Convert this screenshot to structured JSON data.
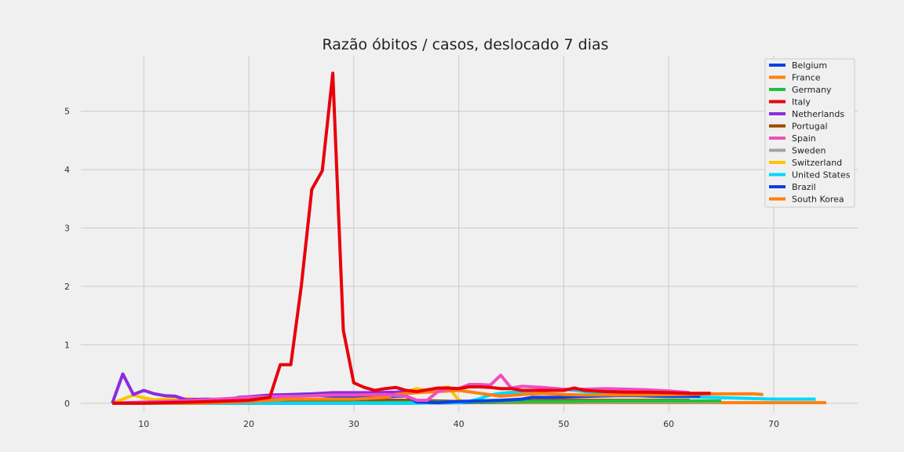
{
  "chart_data": {
    "type": "line",
    "title": "Razão óbitos / casos, deslocado 7 dias",
    "xlabel": "",
    "ylabel": "",
    "xlim": [
      4,
      78
    ],
    "ylim": [
      -0.15,
      5.95
    ],
    "xticks": [
      10,
      20,
      30,
      40,
      50,
      60,
      70
    ],
    "yticks": [
      0,
      1,
      2,
      3,
      4,
      5
    ],
    "grid": true,
    "legend_position": "top-right",
    "series": [
      {
        "name": "Belgium",
        "color": "#0b3fe3",
        "x": [
          7,
          10,
          15,
          18,
          20,
          22,
          24,
          26,
          28,
          30,
          32,
          34,
          35,
          36,
          38,
          40,
          42,
          44,
          46,
          47,
          49,
          51,
          53,
          55,
          57,
          59,
          61,
          63
        ],
        "y": [
          0.0,
          0.0,
          0.02,
          0.04,
          0.07,
          0.1,
          0.13,
          0.14,
          0.12,
          0.1,
          0.1,
          0.12,
          0.12,
          0.02,
          0.01,
          0.03,
          0.04,
          0.05,
          0.07,
          0.1,
          0.1,
          0.11,
          0.12,
          0.13,
          0.13,
          0.12,
          0.12,
          0.12
        ]
      },
      {
        "name": "France",
        "color": "#ff7f0e",
        "x": [
          7,
          15,
          20,
          24,
          26,
          30,
          33,
          34,
          36,
          38,
          40,
          42,
          44,
          46,
          48,
          50,
          52,
          55,
          58,
          61,
          64,
          66,
          68,
          69
        ],
        "y": [
          0.0,
          0.0,
          0.03,
          0.07,
          0.07,
          0.07,
          0.1,
          0.15,
          0.18,
          0.2,
          0.22,
          0.17,
          0.12,
          0.15,
          0.17,
          0.15,
          0.14,
          0.14,
          0.14,
          0.15,
          0.16,
          0.16,
          0.16,
          0.15
        ]
      },
      {
        "name": "Germany",
        "color": "#1fc13b",
        "x": [
          7,
          20,
          30,
          40,
          45,
          50,
          55,
          60,
          65
        ],
        "y": [
          0.0,
          0.0,
          0.01,
          0.02,
          0.03,
          0.03,
          0.04,
          0.04,
          0.04
        ]
      },
      {
        "name": "Italy",
        "color": "#e8000b",
        "x": [
          7,
          10,
          15,
          20,
          22,
          23,
          24,
          25,
          26,
          27,
          28,
          29,
          30,
          31,
          32,
          33,
          34,
          35,
          36,
          37,
          38,
          39,
          40,
          41,
          42,
          43,
          44,
          45,
          46,
          48,
          50,
          51,
          52,
          54,
          56,
          58,
          60,
          62,
          64
        ],
        "y": [
          0.0,
          0.0,
          0.02,
          0.05,
          0.1,
          0.66,
          0.66,
          2.0,
          3.66,
          3.98,
          5.65,
          1.25,
          0.35,
          0.27,
          0.22,
          0.25,
          0.27,
          0.22,
          0.2,
          0.23,
          0.26,
          0.26,
          0.25,
          0.28,
          0.28,
          0.27,
          0.25,
          0.25,
          0.22,
          0.22,
          0.22,
          0.26,
          0.22,
          0.2,
          0.19,
          0.19,
          0.18,
          0.17,
          0.17
        ]
      },
      {
        "name": "Netherlands",
        "color": "#8b2be2",
        "x": [
          7,
          8,
          9,
          10,
          11,
          12,
          13,
          14,
          16,
          18,
          19,
          20,
          22,
          24,
          26,
          28,
          30,
          32,
          34,
          35
        ],
        "y": [
          0.0,
          0.5,
          0.15,
          0.22,
          0.16,
          0.13,
          0.12,
          0.06,
          0.07,
          0.06,
          0.1,
          0.11,
          0.14,
          0.15,
          0.16,
          0.18,
          0.18,
          0.18,
          0.19,
          0.2
        ]
      },
      {
        "name": "Portugal",
        "color": "#9f4800",
        "x": [
          7,
          15,
          20,
          24,
          26,
          28,
          30,
          35,
          40,
          45,
          50,
          55,
          60,
          62
        ],
        "y": [
          0.0,
          0.01,
          0.03,
          0.06,
          0.06,
          0.06,
          0.06,
          0.05,
          0.03,
          0.04,
          0.05,
          0.05,
          0.05,
          0.05
        ]
      },
      {
        "name": "Spain",
        "color": "#f14cc1",
        "x": [
          7,
          15,
          20,
          24,
          28,
          30,
          33,
          35,
          36,
          37,
          38,
          39,
          40,
          41,
          42,
          43,
          44,
          45,
          46,
          48,
          50,
          52,
          54,
          56,
          58,
          60,
          62
        ],
        "y": [
          0.0,
          0.05,
          0.1,
          0.12,
          0.14,
          0.14,
          0.15,
          0.12,
          0.05,
          0.05,
          0.2,
          0.25,
          0.25,
          0.32,
          0.32,
          0.31,
          0.48,
          0.26,
          0.29,
          0.27,
          0.24,
          0.24,
          0.25,
          0.24,
          0.23,
          0.21,
          0.18
        ]
      },
      {
        "name": "Sweden",
        "color": "#a3a3a3",
        "x": [
          7,
          20,
          30,
          40,
          50,
          60,
          65
        ],
        "y": [
          0.0,
          0.01,
          0.01,
          0.02,
          0.02,
          0.02,
          0.02
        ]
      },
      {
        "name": "Switzerland",
        "color": "#ffc400",
        "x": [
          7,
          9,
          10,
          11,
          12,
          13,
          15,
          17,
          20,
          25,
          30,
          32,
          34,
          36,
          37,
          38,
          39,
          40,
          41,
          42
        ],
        "y": [
          0.0,
          0.14,
          0.09,
          0.06,
          0.07,
          0.08,
          0.07,
          0.02,
          0.02,
          0.03,
          0.03,
          0.06,
          0.15,
          0.25,
          0.22,
          0.25,
          0.28,
          0.05,
          0.02,
          0.02
        ]
      },
      {
        "name": "United States",
        "color": "#00d7ff",
        "x": [
          7,
          20,
          30,
          33,
          36,
          38,
          40,
          41,
          42,
          43,
          44,
          46,
          48,
          50,
          52,
          54,
          56,
          58,
          60,
          62,
          64,
          66,
          68,
          70,
          72,
          74
        ],
        "y": [
          0.0,
          0.0,
          0.0,
          0.0,
          0.0,
          0.01,
          0.01,
          0.03,
          0.08,
          0.14,
          0.17,
          0.2,
          0.23,
          0.24,
          0.2,
          0.17,
          0.14,
          0.12,
          0.11,
          0.11,
          0.1,
          0.09,
          0.08,
          0.07,
          0.07,
          0.07
        ]
      },
      {
        "name": "Brazil",
        "color": "#0b3fe3",
        "x": [
          7,
          30,
          35,
          40,
          45,
          50,
          55,
          60
        ],
        "y": [
          0.0,
          0.0,
          0.0,
          0.01,
          0.02,
          0.03,
          0.04,
          0.04
        ]
      },
      {
        "name": "South Korea",
        "color": "#ff7f0e",
        "x": [
          7,
          20,
          30,
          40,
          50,
          60,
          70,
          75
        ],
        "y": [
          0.0,
          0.0,
          0.0,
          0.01,
          0.01,
          0.01,
          0.01,
          0.01
        ]
      }
    ]
  }
}
